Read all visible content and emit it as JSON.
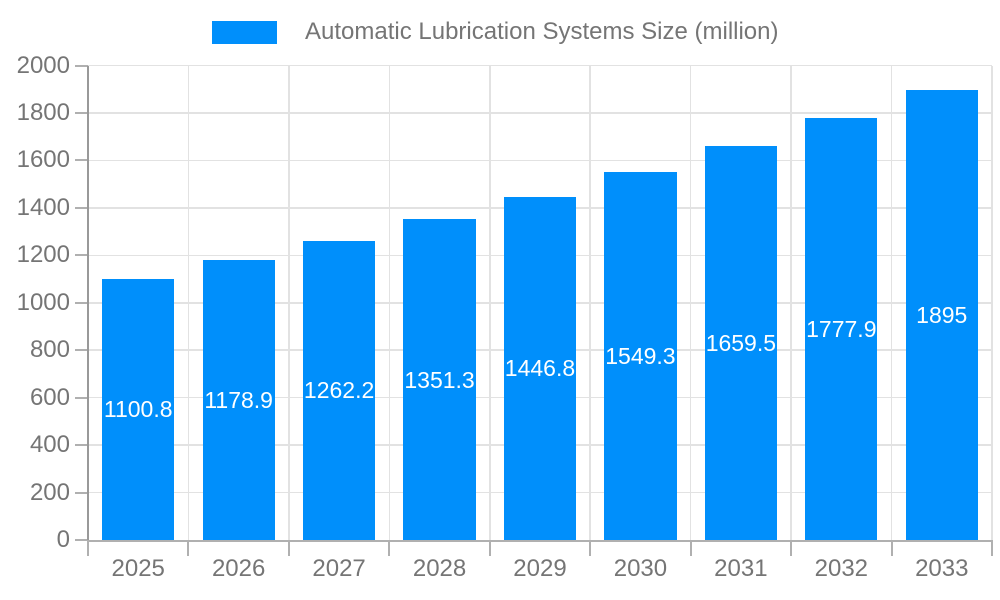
{
  "chart_data": {
    "type": "bar",
    "title": "Automatic Lubrication Systems Size (million)",
    "categories": [
      "2025",
      "2026",
      "2027",
      "2028",
      "2029",
      "2030",
      "2031",
      "2032",
      "2033"
    ],
    "values": [
      1100.8,
      1178.9,
      1262.2,
      1351.3,
      1446.8,
      1549.3,
      1659.5,
      1777.9,
      1895
    ],
    "value_labels": [
      "1100.8",
      "1178.9",
      "1262.2",
      "1351.3",
      "1446.8",
      "1549.3",
      "1659.5",
      "1777.9",
      "1895"
    ],
    "xlabel": "",
    "ylabel": "",
    "ylim": [
      0,
      2000
    ],
    "ytick_step": 200,
    "ytick_labels": [
      "0",
      "200",
      "400",
      "600",
      "800",
      "1000",
      "1200",
      "1400",
      "1600",
      "1800",
      "2000"
    ],
    "legend_position": "top",
    "grid": true,
    "colors": {
      "series": "#008ffb",
      "data_label": "#ffffff",
      "axis_text": "#757575",
      "legend_text": "#757575",
      "gridline": "#e2e2e2",
      "x_axis_line": "#b0b0b0",
      "y_axis_line": "#999999",
      "tick": "#b0b0b0"
    }
  }
}
